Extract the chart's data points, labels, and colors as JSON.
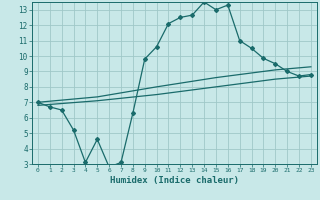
{
  "xlabel": "Humidex (Indice chaleur)",
  "ylabel": "",
  "background_color": "#c8e8e8",
  "grid_color": "#a0c8c8",
  "line_color": "#1a6b6b",
  "xlim": [
    -0.5,
    23.5
  ],
  "ylim": [
    3,
    13.5
  ],
  "xticks": [
    0,
    1,
    2,
    3,
    4,
    5,
    6,
    7,
    8,
    9,
    10,
    11,
    12,
    13,
    14,
    15,
    16,
    17,
    18,
    19,
    20,
    21,
    22,
    23
  ],
  "yticks": [
    3,
    4,
    5,
    6,
    7,
    8,
    9,
    10,
    11,
    12,
    13
  ],
  "line1_x": [
    0,
    1,
    2,
    3,
    4,
    5,
    6,
    7,
    8,
    9,
    10,
    11,
    12,
    13,
    14,
    15,
    16,
    17,
    18,
    19,
    20,
    21,
    22,
    23
  ],
  "line1_y": [
    7.0,
    6.7,
    6.5,
    5.2,
    3.1,
    4.6,
    2.8,
    3.1,
    6.3,
    9.8,
    10.6,
    12.1,
    12.5,
    12.65,
    13.5,
    13.0,
    13.3,
    11.0,
    10.5,
    9.85,
    9.5,
    9.0,
    8.7,
    8.8
  ],
  "line2_x": [
    0,
    5,
    10,
    15,
    20,
    23
  ],
  "line2_y": [
    7.0,
    7.35,
    8.0,
    8.6,
    9.1,
    9.3
  ],
  "line3_x": [
    0,
    5,
    10,
    15,
    20,
    23
  ],
  "line3_y": [
    6.8,
    7.1,
    7.5,
    8.0,
    8.5,
    8.7
  ],
  "xlabel_fontsize": 6.5,
  "tick_fontsize_x": 4.5,
  "tick_fontsize_y": 5.5
}
